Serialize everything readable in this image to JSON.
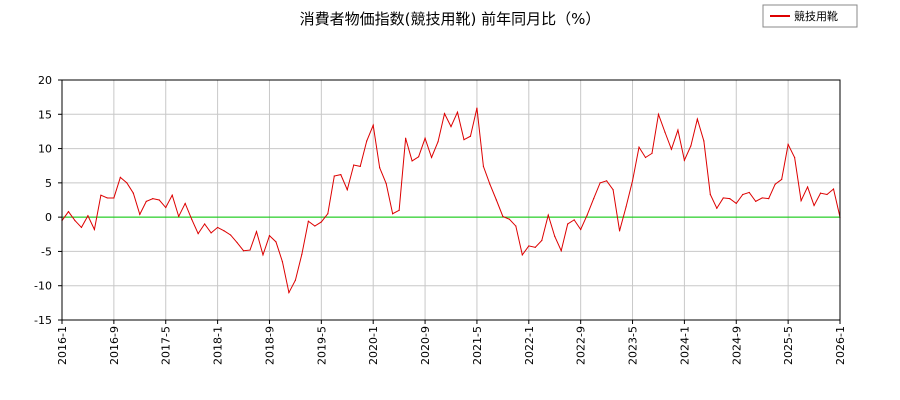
{
  "chart_data": {
    "type": "line",
    "title": "消費者物価指数(競技用靴) 前年同月比（%）",
    "xlabel": "",
    "ylabel": "",
    "ylim": [
      -15,
      20
    ],
    "y_ticks": [
      20,
      15,
      10,
      5,
      0,
      -5,
      -10,
      -15
    ],
    "x_tick_labels": [
      "2016-1",
      "2016-9",
      "2017-5",
      "2018-1",
      "2018-9",
      "2019-5",
      "2020-1",
      "2020-9",
      "2021-5",
      "2022-1",
      "2022-9",
      "2023-5",
      "2024-1",
      "2024-9",
      "2025-5",
      "2026-1"
    ],
    "grid": true,
    "legend": "top-right",
    "colors": {
      "series": "#dd0000",
      "zero_line": "#00cc00",
      "grid": "#c8c8c8"
    },
    "series": [
      {
        "name": "競技用靴",
        "start": "2016-1",
        "values": [
          -0.5,
          0.8,
          -0.5,
          -1.5,
          0.2,
          -1.8,
          3.2,
          2.8,
          2.8,
          5.8,
          5.0,
          3.5,
          0.4,
          2.3,
          2.7,
          2.5,
          1.4,
          3.2,
          0.1,
          2.0,
          -0.3,
          -2.4,
          -1.0,
          -2.3,
          -1.5,
          -2.0,
          -2.6,
          -3.7,
          -4.9,
          -4.8,
          -2.1,
          -5.5,
          -2.7,
          -3.6,
          -6.5,
          -11.0,
          -9.2,
          -5.4,
          -0.6,
          -1.3,
          -0.7,
          0.5,
          6.0,
          6.2,
          4.0,
          7.6,
          7.4,
          11.1,
          13.4,
          7.2,
          4.9,
          0.5,
          1.0,
          11.5,
          8.2,
          8.8,
          11.5,
          8.7,
          11.0,
          15.1,
          13.2,
          15.3,
          11.3,
          11.8,
          15.9,
          7.4,
          4.8,
          2.5,
          0.1,
          -0.3,
          -1.3,
          -5.5,
          -4.2,
          -4.4,
          -3.4,
          0.3,
          -2.8,
          -4.9,
          -1.0,
          -0.4,
          -1.8,
          0.3,
          2.7,
          5.0,
          5.3,
          4.0,
          -2.0,
          1.5,
          5.3,
          10.2,
          8.7,
          9.3,
          15.0,
          12.4,
          9.9,
          12.7,
          8.3,
          10.4,
          14.3,
          11.1,
          3.3,
          1.3,
          2.8,
          2.7,
          2.0,
          3.3,
          3.6,
          2.3,
          2.8,
          2.7,
          4.8,
          5.5,
          10.6,
          8.7,
          2.4,
          4.4,
          1.7,
          3.5,
          3.3,
          4.1,
          0.0
        ]
      }
    ]
  }
}
